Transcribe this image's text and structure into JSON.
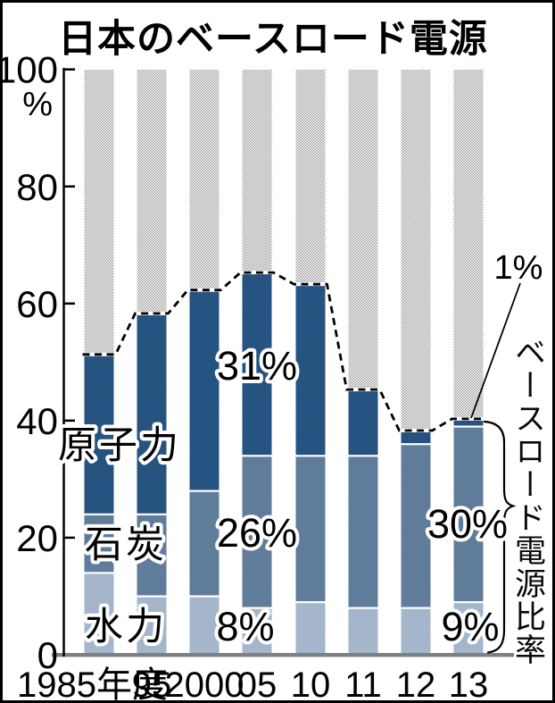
{
  "title": "日本のベースロード電源",
  "y_axis": {
    "unit": "%",
    "ticks": [
      "100",
      "80",
      "60",
      "40",
      "20",
      "0"
    ]
  },
  "x_axis": {
    "labels": [
      "1985年度",
      "95",
      "2000",
      "05",
      "10",
      "11",
      "12",
      "13"
    ]
  },
  "chart_data": {
    "type": "bar",
    "stacked": true,
    "title": "日本のベースロード電源",
    "categories": [
      "1985年度",
      "95",
      "2000",
      "05",
      "10",
      "11",
      "12",
      "13"
    ],
    "series": [
      {
        "key": "hydro",
        "name": "水力",
        "values": [
          14,
          10,
          10,
          8,
          9,
          8,
          8,
          9
        ],
        "base_color": "#b4c1d3",
        "dot_color": "#95aac3"
      },
      {
        "key": "coal",
        "name": "石炭",
        "values": [
          10,
          14,
          18,
          26,
          25,
          26,
          28,
          30
        ],
        "base_color": "#6f89a6",
        "dot_color": "#51708f"
      },
      {
        "key": "nuclear",
        "name": "原子力",
        "values": [
          27,
          34,
          34,
          31,
          29,
          11,
          2,
          1
        ],
        "base_color": "#1d4a74",
        "dot_color": "#2e5c8c"
      }
    ],
    "baseload_totals": [
      51,
      58,
      62,
      65,
      63,
      45,
      38,
      40
    ],
    "remainder_to_100": {
      "base_color": "#ffffff",
      "dot_color": "#9c9c9c"
    },
    "ylim": [
      0,
      100
    ],
    "grid": false,
    "legend_position": "labels drawn on bars",
    "trend_line": {
      "style": "dashed",
      "color": "#000000",
      "connects": "baseload totals"
    }
  },
  "annotations": {
    "series_nuclear": "原子力",
    "series_coal": "石炭",
    "series_hydro": "水力",
    "pct_2005_nuclear": "31%",
    "pct_2005_coal": "26%",
    "pct_2005_hydro": "8%",
    "pct_2013_nuclear": "1%",
    "pct_2013_coal": "30%",
    "pct_2013_hydro": "9%",
    "bracket_label": "ベースロード電源比率"
  },
  "colors": {
    "text": "#000000",
    "axis": "#000000",
    "baseline": "#7c8084",
    "background": "#ffffff",
    "frame_border": "#000000"
  }
}
